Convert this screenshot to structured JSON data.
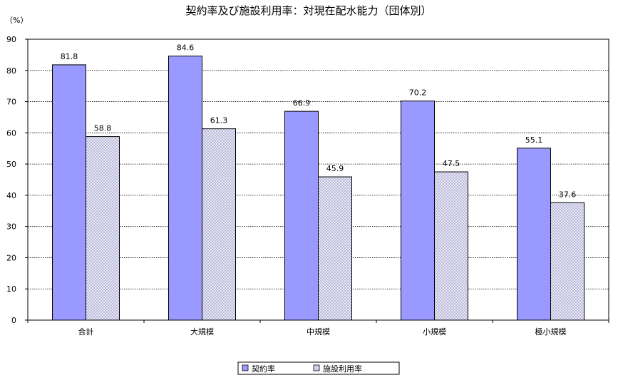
{
  "chart_data": {
    "type": "bar",
    "title": "契約率及び施設利用率：対現在配水能力（団体別）",
    "unit": "（%）",
    "categories": [
      "合計",
      "大規模",
      "中規模",
      "小規模",
      "極小規模"
    ],
    "series": [
      {
        "name": "契約率",
        "values": [
          81.8,
          84.6,
          66.9,
          70.2,
          55.1
        ],
        "color": "#9999ff",
        "fill": "solid"
      },
      {
        "name": "施設利用率",
        "values": [
          58.8,
          61.3,
          45.9,
          47.5,
          37.6
        ],
        "color": "#c8c8e8",
        "fill": "crosshatch"
      }
    ],
    "ylim": [
      0,
      90
    ],
    "yticks": [
      0,
      10,
      20,
      30,
      40,
      50,
      60,
      70,
      80,
      90
    ],
    "grid": true,
    "grid_style": "dotted",
    "legend_position": "bottom-center",
    "data_labels": true
  }
}
